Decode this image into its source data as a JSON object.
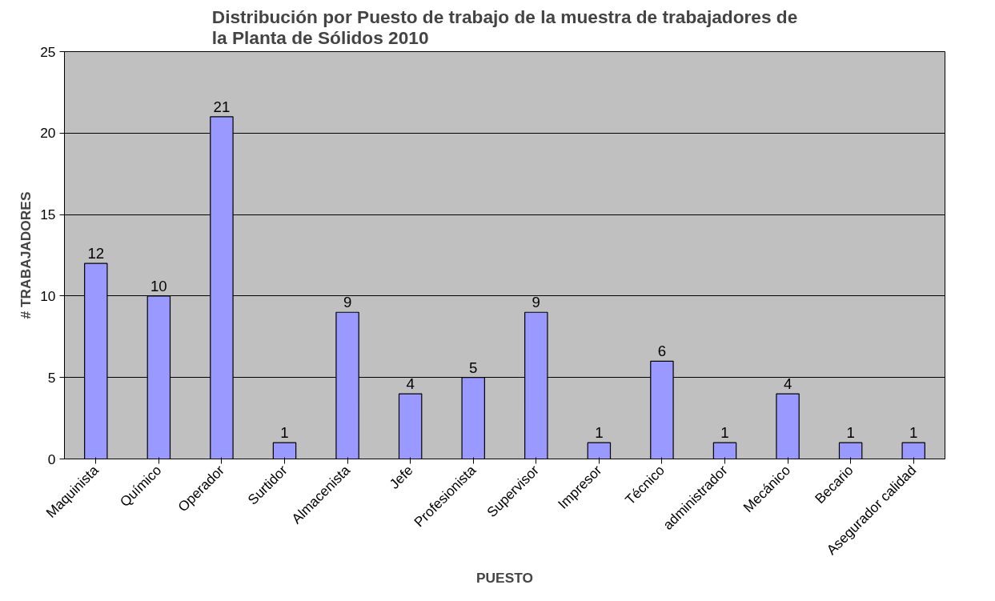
{
  "chart_data": {
    "type": "bar",
    "title": "Distribución por Puesto de trabajo de la muestra de trabajadores de la Planta de Sólidos 2010",
    "xlabel": "PUESTO",
    "ylabel": "# TRABAJADORES",
    "categories": [
      "Maquinista",
      "Químico",
      "Operador",
      "Surtidor",
      "Almacenista",
      "Jefe",
      "Profesionista",
      "Supervisor",
      "Impresor",
      "Técnico",
      "administrador",
      "Mecánico",
      "Becario",
      "Asegurador calidad"
    ],
    "values": [
      12,
      10,
      21,
      1,
      9,
      4,
      5,
      9,
      1,
      6,
      1,
      4,
      1,
      1
    ],
    "color": "#9999ff",
    "ylim": [
      0,
      25
    ],
    "yticks": [
      0,
      5,
      10,
      15,
      20,
      25
    ],
    "grid": "y",
    "data_labels": true
  }
}
